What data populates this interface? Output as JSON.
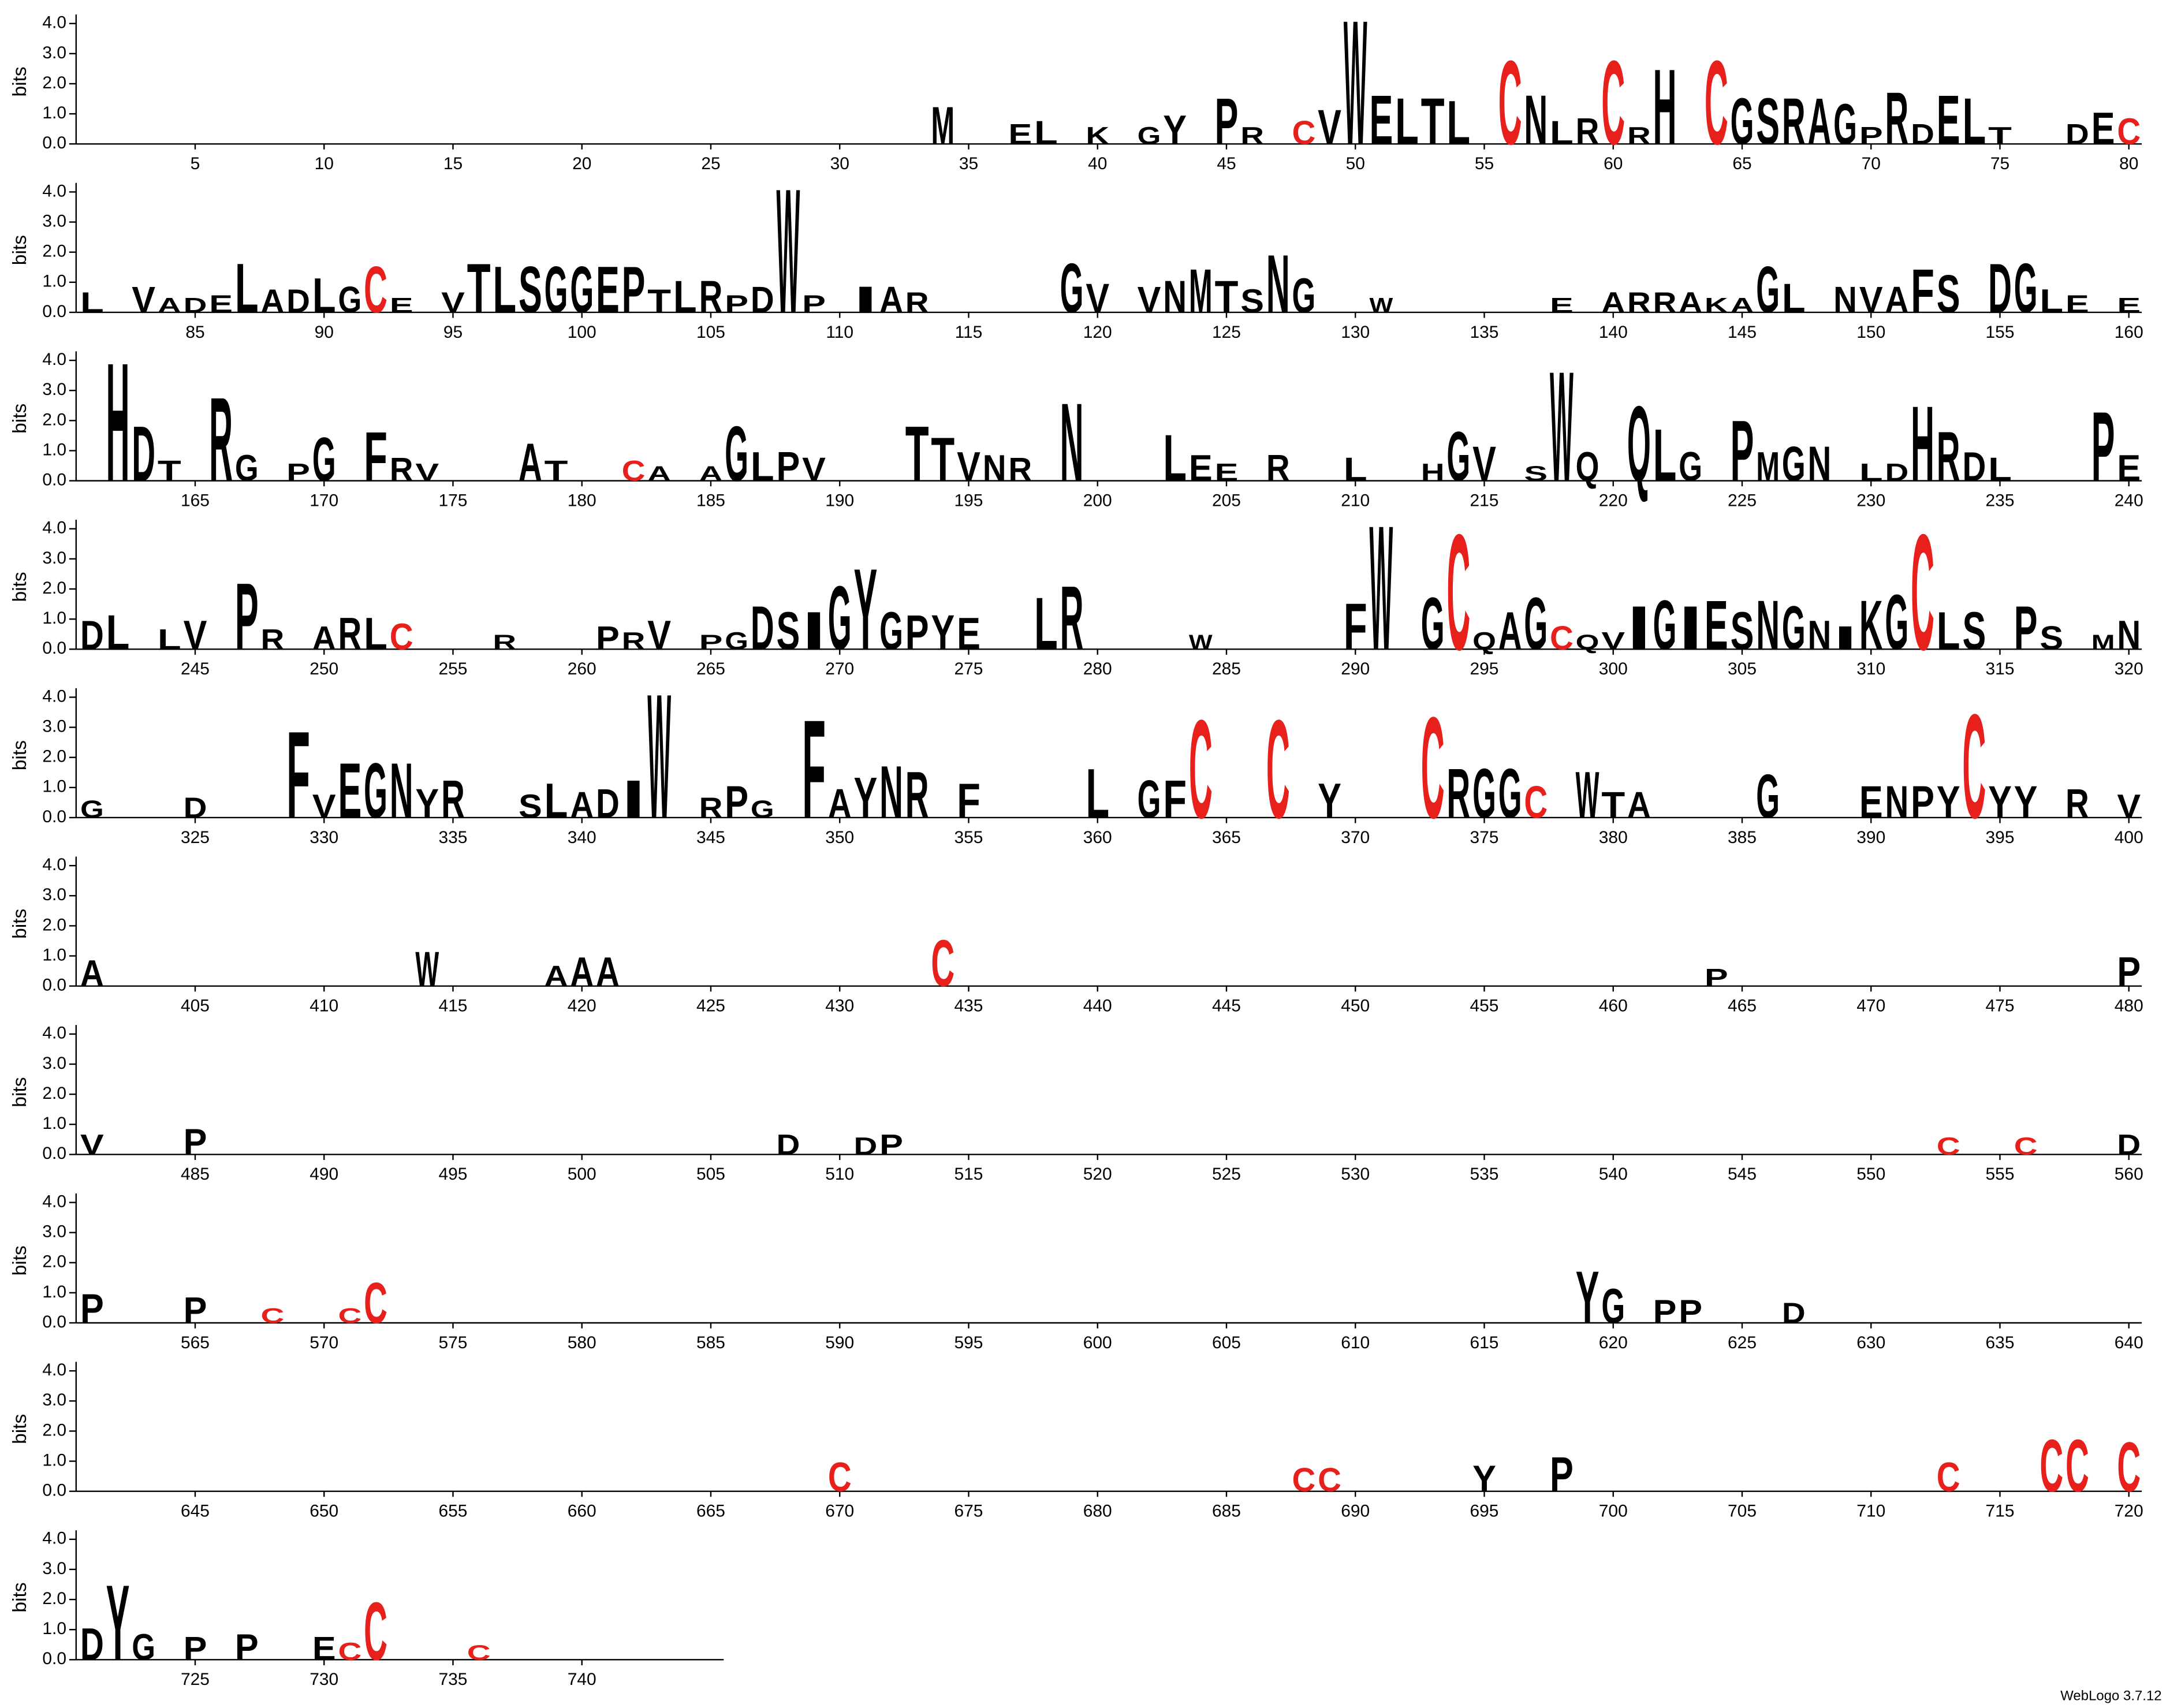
{
  "chart_data": {
    "type": "logo",
    "ylabel": "bits",
    "footer": "WebLogo 3.7.12",
    "xlim": [
      1,
      745
    ],
    "ylim": [
      0,
      4.3
    ],
    "yticks": [
      {
        "value": 0,
        "label": "0.0"
      },
      {
        "value": 1,
        "label": "1.0"
      },
      {
        "value": 2,
        "label": "2.0"
      },
      {
        "value": 3,
        "label": "3.0"
      },
      {
        "value": 4,
        "label": "4.0"
      }
    ],
    "xticks": [
      5,
      10,
      15,
      20,
      25,
      30,
      35,
      40,
      45,
      50,
      55,
      60,
      65,
      70,
      75,
      80,
      85,
      90,
      95,
      100,
      105,
      110,
      115,
      120,
      125,
      130,
      135,
      140,
      145,
      150,
      155,
      160,
      165,
      170,
      175,
      180,
      185,
      190,
      195,
      200,
      205,
      210,
      215,
      220,
      225,
      230,
      235,
      240,
      245,
      250,
      255,
      260,
      265,
      270,
      275,
      280,
      285,
      290,
      295,
      300,
      305,
      310,
      315,
      320,
      325,
      330,
      335,
      340,
      345,
      350,
      355,
      360,
      365,
      370,
      375,
      380,
      385,
      390,
      395,
      400,
      405,
      410,
      415,
      420,
      425,
      430,
      435,
      440,
      445,
      450,
      455,
      460,
      465,
      470,
      475,
      480,
      485,
      490,
      495,
      500,
      505,
      510,
      515,
      520,
      525,
      530,
      535,
      540,
      545,
      550,
      555,
      560,
      565,
      570,
      575,
      580,
      585,
      590,
      595,
      600,
      605,
      610,
      615,
      620,
      625,
      630,
      635,
      640,
      645,
      650,
      655,
      660,
      665,
      670,
      675,
      680,
      685,
      690,
      695,
      700,
      705,
      710,
      715,
      720,
      725,
      730,
      735,
      740
    ],
    "color": "#000000",
    "letter_colors": {
      "C": "#e8201c"
    },
    "positions": [
      34,
      37,
      38,
      40,
      42,
      43,
      45,
      46,
      48,
      49,
      50,
      51,
      52,
      53,
      54,
      56,
      57,
      58,
      59,
      60,
      61,
      62,
      64,
      65,
      66,
      67,
      68,
      69,
      70,
      71,
      72,
      73,
      74,
      75,
      78,
      79,
      80,
      81,
      83,
      84,
      85,
      86,
      87,
      88,
      89,
      90,
      91,
      92,
      93,
      95,
      96,
      97,
      98,
      99,
      100,
      101,
      102,
      103,
      104,
      105,
      106,
      107,
      108,
      109,
      111,
      112,
      113,
      119,
      120,
      122,
      123,
      124,
      125,
      126,
      127,
      128,
      131,
      138,
      140,
      141,
      142,
      143,
      144,
      145,
      146,
      147,
      149,
      150,
      151,
      152,
      153,
      155,
      156,
      157,
      158,
      160,
      162,
      163,
      164,
      166,
      167,
      169,
      170,
      172,
      173,
      174,
      178,
      179,
      182,
      183,
      185,
      186,
      187,
      188,
      189,
      193,
      194,
      195,
      196,
      197,
      199,
      203,
      204,
      205,
      207,
      210,
      213,
      214,
      215,
      217,
      218,
      219,
      221,
      222,
      223,
      225,
      226,
      227,
      228,
      230,
      231,
      232,
      233,
      234,
      235,
      239,
      240,
      241,
      242,
      244,
      245,
      247,
      248,
      250,
      251,
      252,
      253,
      257,
      261,
      262,
      263,
      265,
      266,
      267,
      268,
      269,
      270,
      271,
      272,
      273,
      274,
      275,
      278,
      279,
      284,
      290,
      291,
      293,
      294,
      295,
      296,
      297,
      298,
      299,
      300,
      301,
      302,
      303,
      304,
      305,
      306,
      307,
      308,
      309,
      310,
      311,
      312,
      313,
      314,
      316,
      317,
      319,
      320,
      321,
      325,
      329,
      330,
      331,
      332,
      333,
      334,
      335,
      338,
      339,
      340,
      341,
      342,
      343,
      345,
      346,
      347,
      349,
      350,
      351,
      352,
      353,
      355,
      360,
      362,
      363,
      364,
      367,
      369,
      373,
      374,
      375,
      376,
      377,
      379,
      380,
      381,
      386,
      390,
      391,
      392,
      393,
      394,
      395,
      396,
      398,
      400,
      401,
      414,
      419,
      420,
      421,
      434,
      464,
      480,
      481,
      485,
      508,
      511,
      512,
      553,
      556,
      560,
      561,
      565,
      568,
      571,
      572,
      619,
      620,
      622,
      623,
      627,
      670,
      688,
      689,
      695,
      698,
      713,
      717,
      718,
      720,
      721,
      722,
      723,
      725,
      727,
      730,
      731,
      732,
      736
    ],
    "letters": [
      "M",
      "E",
      "L",
      "K",
      "G",
      "Y",
      "P",
      "R",
      "C",
      "V",
      "W",
      "E",
      "L",
      "T",
      "L",
      "C",
      "N",
      "L",
      "R",
      "C",
      "R",
      "H",
      "C",
      "G",
      "S",
      "R",
      "A",
      "G",
      "P",
      "R",
      "D",
      "E",
      "L",
      "T",
      "D",
      "E",
      "C",
      "L",
      "V",
      "A",
      "D",
      "E",
      "L",
      "A",
      "D",
      "L",
      "G",
      "C",
      "E",
      "V",
      "T",
      "L",
      "S",
      "G",
      "G",
      "E",
      "P",
      "T",
      "L",
      "R",
      "P",
      "D",
      "W",
      "P",
      "I",
      "A",
      "R",
      "G",
      "V",
      "V",
      "N",
      "M",
      "T",
      "S",
      "N",
      "G",
      "W",
      "E",
      "A",
      "R",
      "R",
      "A",
      "K",
      "A",
      "G",
      "L",
      "N",
      "V",
      "A",
      "F",
      "S",
      "D",
      "G",
      "L",
      "E",
      "E",
      "H",
      "D",
      "T",
      "R",
      "G",
      "P",
      "G",
      "F",
      "R",
      "V",
      "A",
      "T",
      "C",
      "A",
      "A",
      "G",
      "L",
      "P",
      "V",
      "T",
      "T",
      "V",
      "N",
      "R",
      "N",
      "L",
      "E",
      "E",
      "R",
      "L",
      "H",
      "G",
      "V",
      "S",
      "W",
      "Q",
      "Q",
      "L",
      "G",
      "P",
      "M",
      "G",
      "N",
      "L",
      "D",
      "H",
      "R",
      "D",
      "L",
      "P",
      "E",
      "D",
      "L",
      "L",
      "V",
      "P",
      "R",
      "A",
      "R",
      "L",
      "C",
      "R",
      "P",
      "R",
      "V",
      "P",
      "G",
      "D",
      "S",
      "I",
      "G",
      "Y",
      "G",
      "P",
      "Y",
      "E",
      "L",
      "R",
      "W",
      "F",
      "W",
      "G",
      "C",
      "Q",
      "A",
      "G",
      "C",
      "Q",
      "V",
      "I",
      "G",
      "I",
      "E",
      "S",
      "N",
      "G",
      "N",
      "I",
      "K",
      "G",
      "C",
      "L",
      "S",
      "P",
      "S",
      "M",
      "N",
      "G",
      "D",
      "F",
      "V",
      "E",
      "G",
      "N",
      "Y",
      "R",
      "S",
      "L",
      "A",
      "D",
      "I",
      "W",
      "R",
      "P",
      "G",
      "F",
      "A",
      "Y",
      "N",
      "R",
      "F",
      "L",
      "G",
      "F",
      "C",
      "C",
      "Y",
      "C",
      "R",
      "G",
      "G",
      "C",
      "W",
      "T",
      "A",
      "G",
      "E",
      "N",
      "P",
      "Y",
      "C",
      "Y",
      "Y",
      "R",
      "V",
      "A",
      "W",
      "A",
      "A",
      "A",
      "C",
      "P",
      "P",
      "V",
      "P",
      "D",
      "D",
      "P",
      "C",
      "C",
      "D",
      "P",
      "P",
      "C",
      "C",
      "C",
      "Y",
      "G",
      "P",
      "P",
      "D",
      "C",
      "C",
      "C",
      "Y",
      "P",
      "C",
      "C",
      "C",
      "C",
      "D",
      "Y",
      "G",
      "P",
      "P",
      "E",
      "C",
      "C",
      "C"
    ],
    "values": [
      1.3,
      0.7,
      0.8,
      0.6,
      0.6,
      1.0,
      1.6,
      0.6,
      0.8,
      1.2,
      4.3,
      1.7,
      1.6,
      1.6,
      1.5,
      2.9,
      1.7,
      0.8,
      0.9,
      2.9,
      0.6,
      2.6,
      2.9,
      1.6,
      1.6,
      1.6,
      1.6,
      1.4,
      0.6,
      1.8,
      0.7,
      1.7,
      1.6,
      0.6,
      0.7,
      1.1,
      0.9,
      0.7,
      0.9,
      0.5,
      0.5,
      0.6,
      1.7,
      0.8,
      0.8,
      1.2,
      0.9,
      1.6,
      0.5,
      0.7,
      1.7,
      1.6,
      1.6,
      1.6,
      1.6,
      1.6,
      1.6,
      0.8,
      1.1,
      1.1,
      0.6,
      0.9,
      4.3,
      0.6,
      0.9,
      0.9,
      0.7,
      1.7,
      1.0,
      0.9,
      1.1,
      1.5,
      1.1,
      0.8,
      2.0,
      1.2,
      0.5,
      0.5,
      0.7,
      0.7,
      0.7,
      0.7,
      0.5,
      0.5,
      1.6,
      1.0,
      0.9,
      0.9,
      0.9,
      1.5,
      1.3,
      1.7,
      1.7,
      0.8,
      0.6,
      0.5,
      4.1,
      1.9,
      0.7,
      2.9,
      0.9,
      0.6,
      1.5,
      1.7,
      0.8,
      0.6,
      1.3,
      0.7,
      0.7,
      0.5,
      0.5,
      1.9,
      1.0,
      1.0,
      0.8,
      1.9,
      1.5,
      1.0,
      0.9,
      0.8,
      2.7,
      1.6,
      0.9,
      0.6,
      0.9,
      0.8,
      0.6,
      1.7,
      1.2,
      0.5,
      3.8,
      1.0,
      2.6,
      1.8,
      1.0,
      2.1,
      1.0,
      1.2,
      1.2,
      0.6,
      0.6,
      2.6,
      1.7,
      1.0,
      0.8,
      2.4,
      0.9,
      1.0,
      1.2,
      0.7,
      1.0,
      2.3,
      0.7,
      0.8,
      1.1,
      1.1,
      0.9,
      0.5,
      0.8,
      0.6,
      1.0,
      0.5,
      0.6,
      1.5,
      1.3,
      1.3,
      2.2,
      2.8,
      1.3,
      1.2,
      1.2,
      1.1,
      1.8,
      2.2,
      0.5,
      1.6,
      4.3,
      1.8,
      4.0,
      0.6,
      1.3,
      1.8,
      0.8,
      0.5,
      0.6,
      1.5,
      1.7,
      1.5,
      1.7,
      1.3,
      1.7,
      1.5,
      1.0,
      0.8,
      1.7,
      1.9,
      4.0,
      1.3,
      1.3,
      1.5,
      0.8,
      0.5,
      1.0,
      0.6,
      0.7,
      3.0,
      0.8,
      1.9,
      1.9,
      1.9,
      1.0,
      1.3,
      0.8,
      1.2,
      0.9,
      1.0,
      1.3,
      4.3,
      0.7,
      1.1,
      0.6,
      3.4,
      1.0,
      1.4,
      1.8,
      1.6,
      1.2,
      1.7,
      1.3,
      1.3,
      3.4,
      3.4,
      1.2,
      3.5,
      1.7,
      1.7,
      1.7,
      1.1,
      1.6,
      0.9,
      0.9,
      1.5,
      1.1,
      1.1,
      1.1,
      1.1,
      3.6,
      1.1,
      1.1,
      1.0,
      0.8,
      0.9,
      1.2,
      0.7,
      1.0,
      1.0,
      1.6,
      0.6,
      1.0,
      0.7,
      0.9,
      0.7,
      0.6,
      0.7,
      0.6,
      0.6,
      0.7,
      1.0,
      0.9,
      0.5,
      0.5,
      1.4,
      1.8,
      1.2,
      0.8,
      0.8,
      0.7,
      1.0,
      0.8,
      0.8,
      0.9,
      1.2,
      1.0,
      1.8,
      1.8,
      1.7,
      1.1,
      2.6,
      0.9,
      0.8,
      0.9,
      0.8,
      0.6,
      2.0,
      0.5
    ]
  }
}
